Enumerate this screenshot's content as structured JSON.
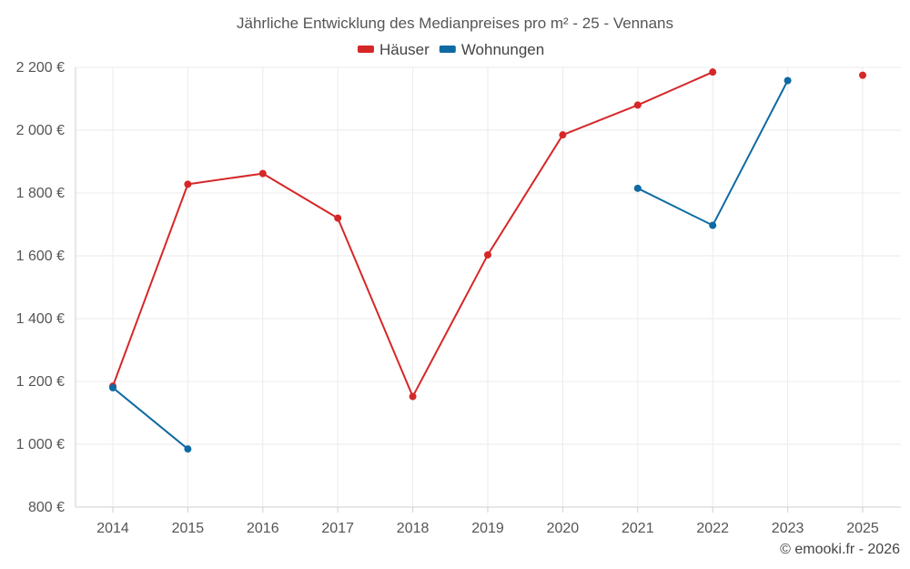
{
  "chart_data": {
    "type": "line",
    "title": "Jährliche Entwicklung des Medianpreises pro m² - 25 - Vennans",
    "categories": [
      "2014",
      "2015",
      "2016",
      "2017",
      "2018",
      "2019",
      "2020",
      "2021",
      "2022",
      "2023",
      "2025"
    ],
    "ylim": [
      800,
      2200
    ],
    "yticks": [
      800,
      1000,
      1200,
      1400,
      1600,
      1800,
      2000,
      2200
    ],
    "ytick_labels": [
      "800 €",
      "1 000 €",
      "1 200 €",
      "1 400 €",
      "1 600 €",
      "1 800 €",
      "2 000 €",
      "2 200 €"
    ],
    "grid": true,
    "legend_position": "top-center",
    "series": [
      {
        "name": "Häuser",
        "color": "#d62728",
        "values": [
          1185,
          1828,
          1862,
          1720,
          1152,
          1603,
          1985,
          2080,
          2185,
          null,
          2175
        ]
      },
      {
        "name": "Wohnungen",
        "color": "#0f6aa3",
        "values": [
          1180,
          985,
          null,
          null,
          null,
          null,
          null,
          1815,
          1697,
          2158,
          null
        ]
      }
    ]
  },
  "footer": {
    "copyright": "© emooki.fr - 2026"
  }
}
